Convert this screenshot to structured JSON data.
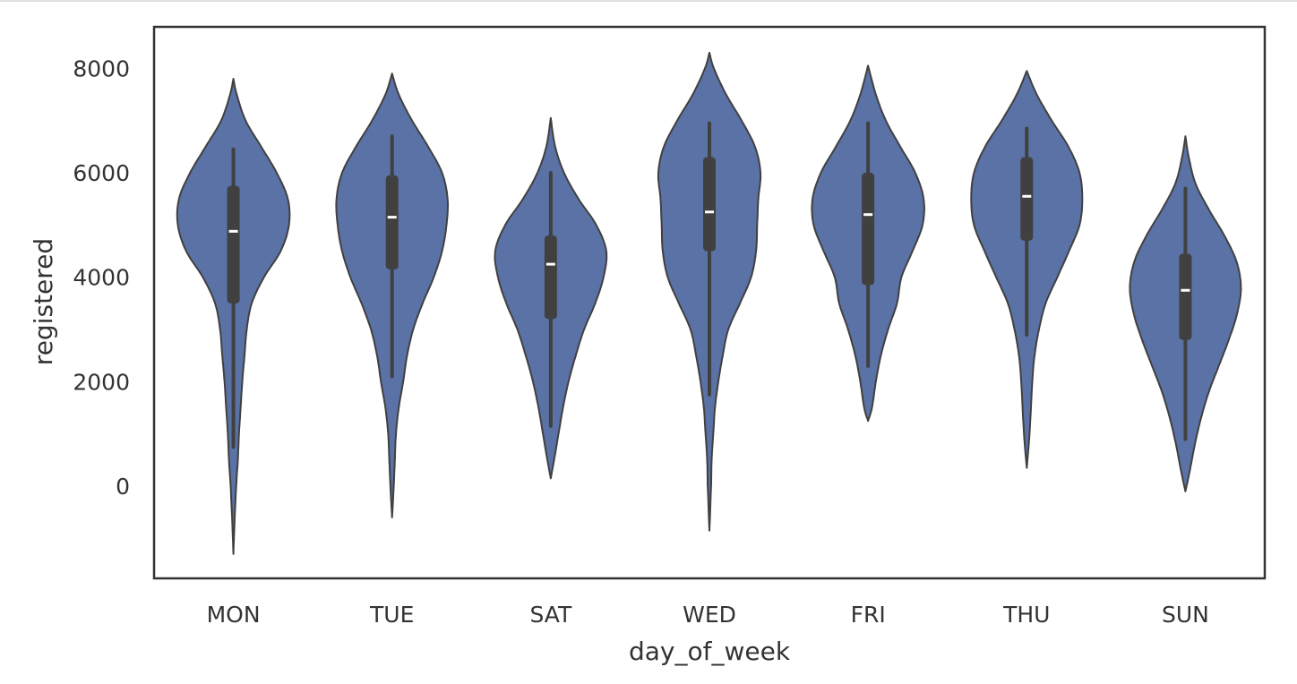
{
  "chart_data": {
    "type": "violin",
    "xlabel": "day_of_week",
    "ylabel": "registered",
    "categories": [
      "MON",
      "TUE",
      "SAT",
      "WED",
      "FRI",
      "THU",
      "SUN"
    ],
    "yticks": [
      0,
      2000,
      4000,
      6000,
      8000
    ],
    "ylim": [
      -1750,
      8800
    ],
    "grid": false,
    "colors": {
      "violin_fill": "#5a72a6",
      "violin_edge": "#404040",
      "box": "#404040",
      "median": "#ffffff",
      "frame": "#333333"
    },
    "violins": [
      {
        "category": "MON",
        "min": 750,
        "q1": 3500,
        "median": 4880,
        "q3": 5750,
        "max": 6450,
        "tail_low": -1300,
        "tail_high": 7800,
        "profile": [
          [
            -1300,
            0.0
          ],
          [
            -700,
            0.02
          ],
          [
            0,
            0.05
          ],
          [
            500,
            0.08
          ],
          [
            1000,
            0.1
          ],
          [
            1500,
            0.13
          ],
          [
            2000,
            0.16
          ],
          [
            2500,
            0.2
          ],
          [
            3000,
            0.24
          ],
          [
            3500,
            0.33
          ],
          [
            4000,
            0.55
          ],
          [
            4500,
            0.85
          ],
          [
            5000,
            1.0
          ],
          [
            5500,
            0.98
          ],
          [
            6000,
            0.78
          ],
          [
            6500,
            0.5
          ],
          [
            7000,
            0.22
          ],
          [
            7500,
            0.06
          ],
          [
            7800,
            0.0
          ]
        ]
      },
      {
        "category": "TUE",
        "min": 2100,
        "q1": 4150,
        "median": 5150,
        "q3": 5950,
        "max": 6700,
        "tail_low": -600,
        "tail_high": 7900,
        "profile": [
          [
            -600,
            0.0
          ],
          [
            0,
            0.03
          ],
          [
            500,
            0.05
          ],
          [
            1000,
            0.07
          ],
          [
            1500,
            0.12
          ],
          [
            2000,
            0.2
          ],
          [
            2500,
            0.27
          ],
          [
            3000,
            0.38
          ],
          [
            3500,
            0.55
          ],
          [
            4000,
            0.75
          ],
          [
            4500,
            0.9
          ],
          [
            5000,
            0.98
          ],
          [
            5500,
            1.0
          ],
          [
            6000,
            0.9
          ],
          [
            6500,
            0.65
          ],
          [
            7000,
            0.36
          ],
          [
            7500,
            0.12
          ],
          [
            7900,
            0.0
          ]
        ]
      },
      {
        "category": "SAT",
        "min": 1150,
        "q1": 3200,
        "median": 4250,
        "q3": 4800,
        "max": 6000,
        "tail_low": 150,
        "tail_high": 7050,
        "profile": [
          [
            150,
            0.0
          ],
          [
            500,
            0.06
          ],
          [
            1000,
            0.14
          ],
          [
            1500,
            0.22
          ],
          [
            2000,
            0.32
          ],
          [
            2500,
            0.45
          ],
          [
            3000,
            0.6
          ],
          [
            3500,
            0.8
          ],
          [
            4000,
            0.95
          ],
          [
            4500,
            1.0
          ],
          [
            5000,
            0.82
          ],
          [
            5500,
            0.5
          ],
          [
            6000,
            0.24
          ],
          [
            6500,
            0.08
          ],
          [
            7050,
            0.0
          ]
        ]
      },
      {
        "category": "WED",
        "min": 1750,
        "q1": 4500,
        "median": 5250,
        "q3": 6300,
        "max": 6950,
        "tail_low": -850,
        "tail_high": 8300,
        "profile": [
          [
            -850,
            0.0
          ],
          [
            0,
            0.03
          ],
          [
            500,
            0.04
          ],
          [
            1000,
            0.07
          ],
          [
            1500,
            0.1
          ],
          [
            2000,
            0.16
          ],
          [
            2500,
            0.24
          ],
          [
            3000,
            0.34
          ],
          [
            3500,
            0.55
          ],
          [
            4000,
            0.75
          ],
          [
            4500,
            0.84
          ],
          [
            5000,
            0.86
          ],
          [
            5500,
            0.88
          ],
          [
            6000,
            0.92
          ],
          [
            6500,
            0.82
          ],
          [
            7000,
            0.58
          ],
          [
            7500,
            0.3
          ],
          [
            8000,
            0.08
          ],
          [
            8300,
            0.0
          ]
        ]
      },
      {
        "category": "FRI",
        "min": 2300,
        "q1": 3850,
        "median": 5200,
        "q3": 6000,
        "max": 6950,
        "tail_low": 1250,
        "tail_high": 8050,
        "profile": [
          [
            1250,
            0.0
          ],
          [
            1500,
            0.07
          ],
          [
            2000,
            0.14
          ],
          [
            2500,
            0.23
          ],
          [
            3000,
            0.36
          ],
          [
            3500,
            0.52
          ],
          [
            4000,
            0.6
          ],
          [
            4500,
            0.8
          ],
          [
            5000,
            0.98
          ],
          [
            5500,
            1.0
          ],
          [
            6000,
            0.85
          ],
          [
            6500,
            0.58
          ],
          [
            7000,
            0.32
          ],
          [
            7500,
            0.14
          ],
          [
            8050,
            0.0
          ]
        ]
      },
      {
        "category": "THU",
        "min": 2900,
        "q1": 4700,
        "median": 5550,
        "q3": 6300,
        "max": 6850,
        "tail_low": 350,
        "tail_high": 7950,
        "profile": [
          [
            350,
            0.0
          ],
          [
            1000,
            0.05
          ],
          [
            2000,
            0.1
          ],
          [
            2500,
            0.14
          ],
          [
            3000,
            0.22
          ],
          [
            3500,
            0.34
          ],
          [
            4000,
            0.55
          ],
          [
            4500,
            0.76
          ],
          [
            5000,
            0.95
          ],
          [
            5500,
            1.0
          ],
          [
            6000,
            0.95
          ],
          [
            6500,
            0.75
          ],
          [
            7000,
            0.45
          ],
          [
            7500,
            0.18
          ],
          [
            7950,
            0.0
          ]
        ]
      },
      {
        "category": "SUN",
        "min": 900,
        "q1": 2800,
        "median": 3750,
        "q3": 4450,
        "max": 5700,
        "tail_low": -100,
        "tail_high": 6700,
        "profile": [
          [
            -100,
            0.0
          ],
          [
            300,
            0.08
          ],
          [
            800,
            0.17
          ],
          [
            1300,
            0.28
          ],
          [
            1800,
            0.42
          ],
          [
            2300,
            0.6
          ],
          [
            2800,
            0.78
          ],
          [
            3300,
            0.93
          ],
          [
            3800,
            1.0
          ],
          [
            4300,
            0.92
          ],
          [
            4800,
            0.7
          ],
          [
            5300,
            0.42
          ],
          [
            5800,
            0.18
          ],
          [
            6300,
            0.06
          ],
          [
            6700,
            0.0
          ]
        ]
      }
    ]
  }
}
